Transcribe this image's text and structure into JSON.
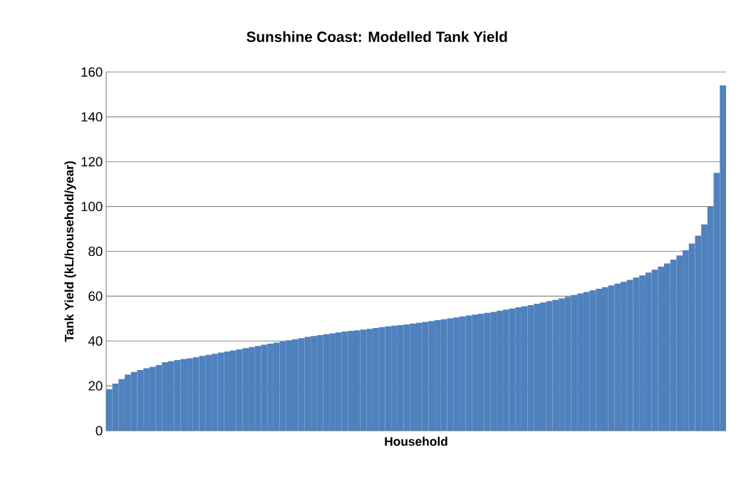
{
  "chart_data": {
    "type": "bar",
    "title": "Sunshine Coast: Modelled Tank Yield",
    "xlabel": "Household",
    "ylabel": "Tank Yield (kL/household/year)",
    "categories": [
      null,
      null,
      null,
      null,
      null,
      null,
      null,
      null,
      null,
      null,
      null,
      null,
      null,
      null,
      null,
      null,
      null,
      null,
      null,
      null,
      null,
      null,
      null,
      null,
      null,
      null,
      null,
      null,
      null,
      null,
      null,
      null,
      null,
      null,
      null,
      null,
      null,
      null,
      null,
      null,
      null,
      null,
      null,
      null,
      null,
      null,
      null,
      null,
      null,
      null,
      null,
      null,
      null,
      null,
      null,
      null,
      null,
      null,
      null,
      null,
      null,
      null,
      null,
      null,
      null,
      null,
      null,
      null,
      null,
      null,
      null,
      null,
      null,
      null,
      null,
      null,
      null,
      null,
      null,
      null,
      null,
      null,
      null,
      null,
      null,
      null,
      null,
      null,
      null,
      null,
      null,
      null,
      null,
      null,
      null,
      null,
      null,
      null,
      null,
      null
    ],
    "values": [
      18.5,
      21,
      23,
      25,
      26.2,
      27,
      27.8,
      28.5,
      29.3,
      30.5,
      31,
      31.5,
      32,
      32.3,
      32.8,
      33.3,
      33.8,
      34.3,
      34.8,
      35.3,
      35.8,
      36.3,
      36.8,
      37.3,
      37.8,
      38.3,
      38.8,
      39.3,
      39.8,
      40.3,
      40.8,
      41.3,
      41.8,
      42.2,
      42.6,
      43,
      43.4,
      43.8,
      44.2,
      44.5,
      44.8,
      45.1,
      45.4,
      45.8,
      46.2,
      46.5,
      46.8,
      47.1,
      47.4,
      47.8,
      48.1,
      48.5,
      48.9,
      49.3,
      49.7,
      50.1,
      50.5,
      51,
      51.4,
      51.8,
      52.2,
      52.6,
      53,
      53.5,
      54,
      54.5,
      55,
      55.5,
      56,
      56.6,
      57.2,
      57.8,
      58.4,
      59,
      59.7,
      60.5,
      61.2,
      61.9,
      62.6,
      63.3,
      64,
      64.8,
      65.6,
      66.4,
      67.3,
      68.3,
      69.3,
      70.5,
      71.8,
      73.2,
      74.6,
      76.3,
      78.2,
      80.5,
      83.5,
      87,
      92,
      100,
      115,
      154
    ],
    "color": "#4f81bd",
    "ylim": [
      0,
      160
    ],
    "yticks": [
      0,
      20,
      40,
      60,
      80,
      100,
      120,
      140,
      160
    ],
    "grid": "y"
  }
}
